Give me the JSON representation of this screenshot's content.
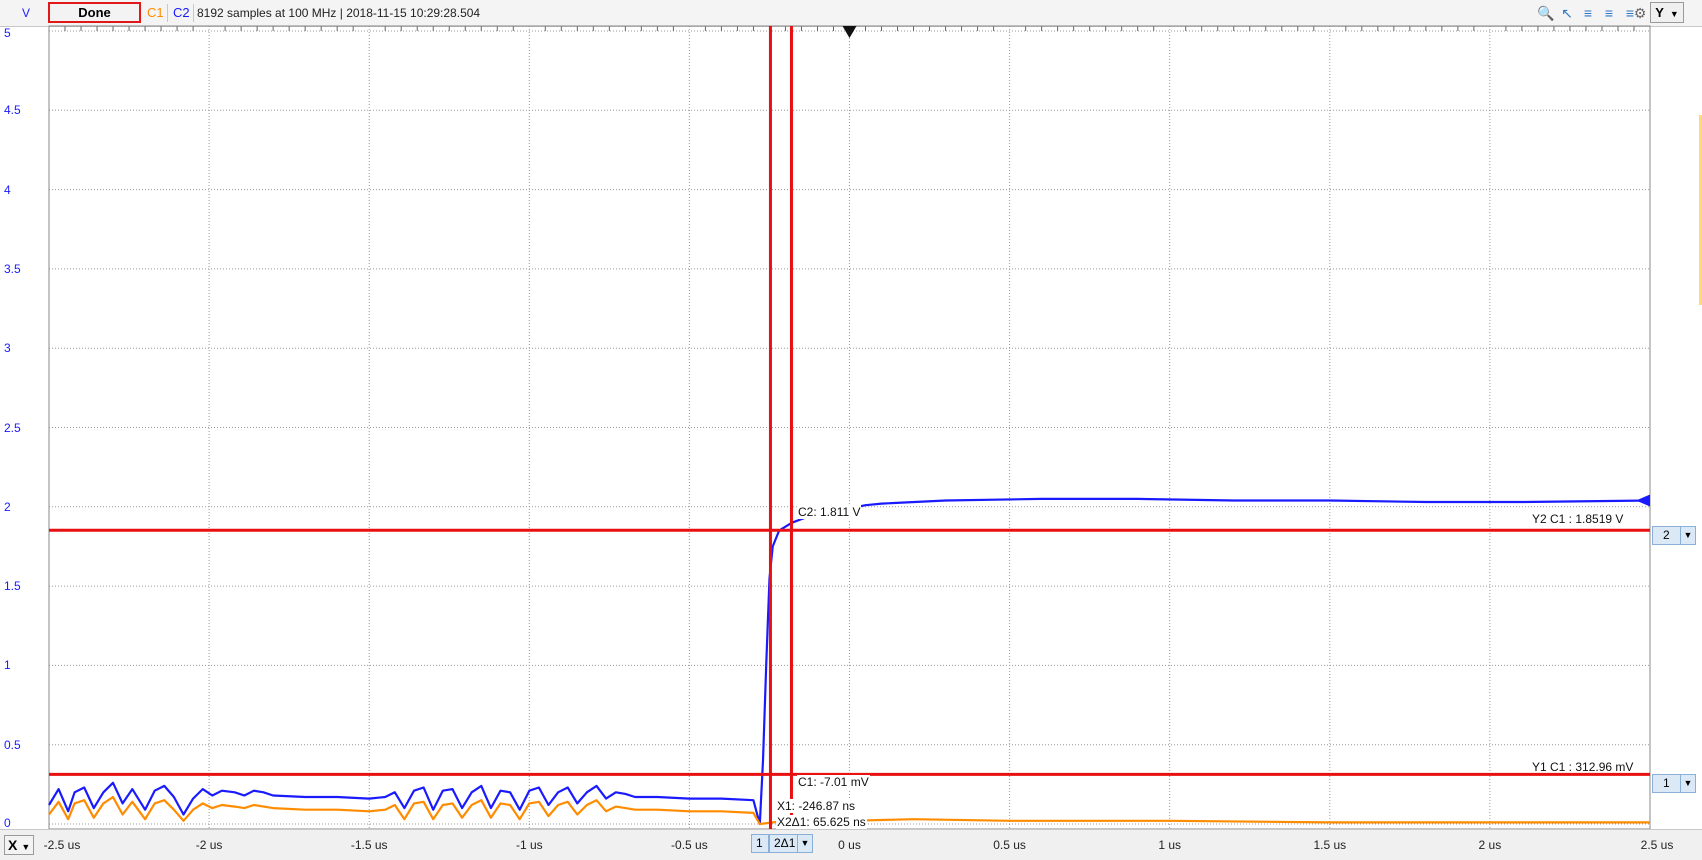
{
  "toolbar": {
    "y_unit": "V",
    "done_label": "Done",
    "channel1": "C1",
    "channel2": "C2",
    "status": "8192 samples at 100 MHz | 2018-11-15 10:29:28.504",
    "y_axis_button": "Y",
    "icons": [
      "zoom-icon",
      "cursor-arrow-icon",
      "measure-icon",
      "measure-alt-icon",
      "fit-icon",
      "gear-icon"
    ]
  },
  "axes": {
    "x_button": "X",
    "x_ticks": [
      "-2.5 us",
      "-2 us",
      "-1.5 us",
      "-1 us",
      "-0.5 us",
      "0 us",
      "0.5 us",
      "1 us",
      "1.5 us",
      "2 us",
      "2.5 us"
    ],
    "y_ticks": [
      "5",
      "4.5",
      "4",
      "3.5",
      "3",
      "2.5",
      "2",
      "1.5",
      "1",
      "0.5",
      "0"
    ]
  },
  "cursors": {
    "x1_selector": "1",
    "x2_selector": "2Δ1",
    "y2_selector": "2",
    "y1_selector": "1",
    "c2_readout": "C2: 1.811 V",
    "c1_readout": "C1: -7.01 mV",
    "y2_label": "Y2 C1 : 1.8519 V",
    "y1_label": "Y1 C1 : 312.96 mV",
    "x1_readout": "X1: -246.87 ns",
    "x2_readout": "X2Δ1: 65.625 ns"
  },
  "colors": {
    "c1": "#ff8c00",
    "c2": "#1a1aff",
    "cursor": "#e81010",
    "grid": "#9a9a9a"
  },
  "chart_data": {
    "type": "line",
    "xlabel": "",
    "ylabel": "V",
    "xlim": [
      -2.5,
      2.5
    ],
    "ylim": [
      0,
      5
    ],
    "x_unit": "us",
    "grid": true,
    "series": [
      {
        "name": "C2",
        "points": [
          [
            -2.5,
            0.12
          ],
          [
            -2.47,
            0.22
          ],
          [
            -2.44,
            0.08
          ],
          [
            -2.42,
            0.2
          ],
          [
            -2.39,
            0.23
          ],
          [
            -2.36,
            0.1
          ],
          [
            -2.33,
            0.2
          ],
          [
            -2.3,
            0.26
          ],
          [
            -2.27,
            0.13
          ],
          [
            -2.24,
            0.22
          ],
          [
            -2.2,
            0.09
          ],
          [
            -2.17,
            0.21
          ],
          [
            -2.14,
            0.24
          ],
          [
            -2.11,
            0.17
          ],
          [
            -2.08,
            0.06
          ],
          [
            -2.05,
            0.16
          ],
          [
            -2.02,
            0.22
          ],
          [
            -1.99,
            0.18
          ],
          [
            -1.96,
            0.21
          ],
          [
            -1.92,
            0.2
          ],
          [
            -1.89,
            0.18
          ],
          [
            -1.86,
            0.21
          ],
          [
            -1.83,
            0.2
          ],
          [
            -1.8,
            0.18
          ],
          [
            -1.7,
            0.17
          ],
          [
            -1.6,
            0.17
          ],
          [
            -1.5,
            0.16
          ],
          [
            -1.45,
            0.17
          ],
          [
            -1.42,
            0.2
          ],
          [
            -1.39,
            0.1
          ],
          [
            -1.36,
            0.21
          ],
          [
            -1.33,
            0.23
          ],
          [
            -1.3,
            0.09
          ],
          [
            -1.27,
            0.21
          ],
          [
            -1.24,
            0.22
          ],
          [
            -1.21,
            0.1
          ],
          [
            -1.18,
            0.2
          ],
          [
            -1.15,
            0.24
          ],
          [
            -1.12,
            0.1
          ],
          [
            -1.09,
            0.21
          ],
          [
            -1.06,
            0.2
          ],
          [
            -1.03,
            0.09
          ],
          [
            -1.0,
            0.21
          ],
          [
            -0.97,
            0.23
          ],
          [
            -0.94,
            0.12
          ],
          [
            -0.91,
            0.2
          ],
          [
            -0.88,
            0.23
          ],
          [
            -0.85,
            0.13
          ],
          [
            -0.82,
            0.2
          ],
          [
            -0.79,
            0.24
          ],
          [
            -0.76,
            0.16
          ],
          [
            -0.73,
            0.2
          ],
          [
            -0.7,
            0.19
          ],
          [
            -0.67,
            0.17
          ],
          [
            -0.6,
            0.17
          ],
          [
            -0.5,
            0.16
          ],
          [
            -0.4,
            0.16
          ],
          [
            -0.3,
            0.15
          ],
          [
            -0.28,
            0.0
          ],
          [
            -0.27,
            0.4
          ],
          [
            -0.26,
            1.0
          ],
          [
            -0.25,
            1.55
          ],
          [
            -0.24,
            1.75
          ],
          [
            -0.22,
            1.85
          ],
          [
            -0.18,
            1.9
          ],
          [
            -0.1,
            1.96
          ],
          [
            0.0,
            1.99
          ],
          [
            0.05,
            2.01
          ],
          [
            0.1,
            2.02
          ],
          [
            0.3,
            2.04
          ],
          [
            0.6,
            2.05
          ],
          [
            0.9,
            2.05
          ],
          [
            1.2,
            2.04
          ],
          [
            1.5,
            2.04
          ],
          [
            1.8,
            2.03
          ],
          [
            2.1,
            2.03
          ],
          [
            2.5,
            2.04
          ]
        ]
      },
      {
        "name": "C1",
        "points": [
          [
            -2.5,
            0.06
          ],
          [
            -2.47,
            0.14
          ],
          [
            -2.44,
            0.03
          ],
          [
            -2.42,
            0.13
          ],
          [
            -2.39,
            0.15
          ],
          [
            -2.36,
            0.04
          ],
          [
            -2.33,
            0.13
          ],
          [
            -2.3,
            0.17
          ],
          [
            -2.27,
            0.06
          ],
          [
            -2.24,
            0.14
          ],
          [
            -2.2,
            0.03
          ],
          [
            -2.17,
            0.13
          ],
          [
            -2.14,
            0.15
          ],
          [
            -2.11,
            0.09
          ],
          [
            -2.08,
            0.02
          ],
          [
            -2.05,
            0.09
          ],
          [
            -2.02,
            0.13
          ],
          [
            -1.99,
            0.1
          ],
          [
            -1.96,
            0.12
          ],
          [
            -1.92,
            0.11
          ],
          [
            -1.89,
            0.1
          ],
          [
            -1.86,
            0.12
          ],
          [
            -1.83,
            0.11
          ],
          [
            -1.8,
            0.1
          ],
          [
            -1.7,
            0.09
          ],
          [
            -1.6,
            0.09
          ],
          [
            -1.5,
            0.08
          ],
          [
            -1.45,
            0.09
          ],
          [
            -1.42,
            0.12
          ],
          [
            -1.39,
            0.03
          ],
          [
            -1.36,
            0.13
          ],
          [
            -1.33,
            0.14
          ],
          [
            -1.3,
            0.03
          ],
          [
            -1.27,
            0.12
          ],
          [
            -1.24,
            0.13
          ],
          [
            -1.21,
            0.04
          ],
          [
            -1.18,
            0.12
          ],
          [
            -1.15,
            0.15
          ],
          [
            -1.12,
            0.04
          ],
          [
            -1.09,
            0.13
          ],
          [
            -1.06,
            0.12
          ],
          [
            -1.03,
            0.03
          ],
          [
            -1.0,
            0.13
          ],
          [
            -0.97,
            0.14
          ],
          [
            -0.94,
            0.05
          ],
          [
            -0.91,
            0.12
          ],
          [
            -0.88,
            0.14
          ],
          [
            -0.85,
            0.06
          ],
          [
            -0.82,
            0.12
          ],
          [
            -0.79,
            0.15
          ],
          [
            -0.76,
            0.08
          ],
          [
            -0.73,
            0.11
          ],
          [
            -0.7,
            0.1
          ],
          [
            -0.67,
            0.09
          ],
          [
            -0.6,
            0.09
          ],
          [
            -0.5,
            0.08
          ],
          [
            -0.4,
            0.08
          ],
          [
            -0.3,
            0.07
          ],
          [
            -0.28,
            0.0
          ],
          [
            -0.2,
            0.02
          ],
          [
            0.0,
            0.02
          ],
          [
            0.2,
            0.03
          ],
          [
            0.5,
            0.02
          ],
          [
            1.0,
            0.02
          ],
          [
            1.5,
            0.01
          ],
          [
            2.0,
            0.01
          ],
          [
            2.5,
            0.01
          ]
        ]
      }
    ],
    "cursors": {
      "x1": -0.24687,
      "x2": -0.18125,
      "y1": 0.31296,
      "y2": 1.8519,
      "trigger_x": 0
    }
  }
}
